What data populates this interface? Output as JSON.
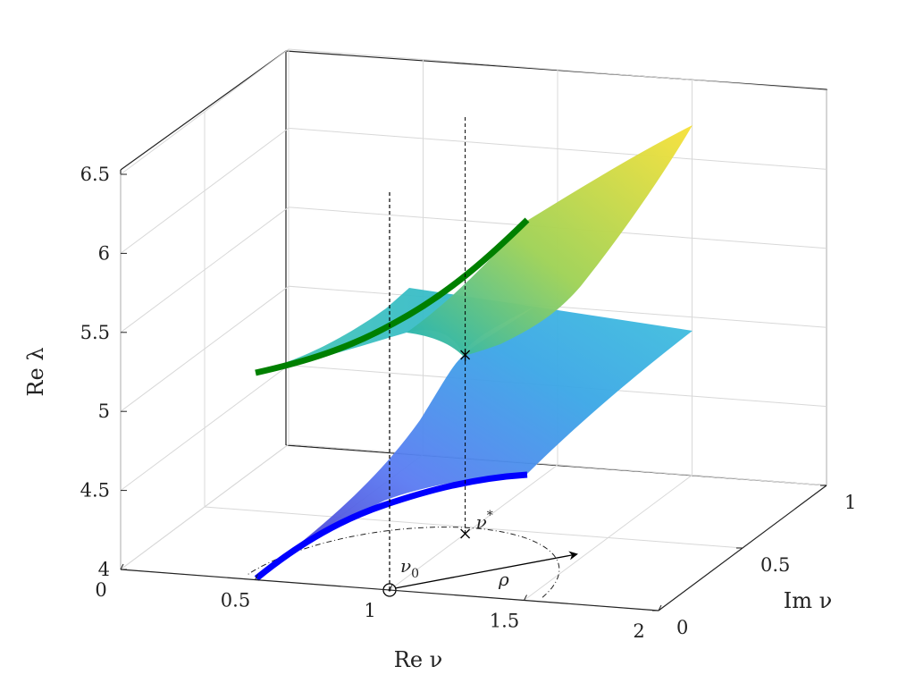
{
  "chart_data": {
    "type": "surface3d",
    "xlabel": "Re ν",
    "ylabel": "Im ν",
    "zlabel": "Re λ",
    "xlim": [
      0,
      2
    ],
    "ylim": [
      0,
      1
    ],
    "zlim": [
      4,
      6.5
    ],
    "x_ticks": [
      "0",
      "0.5",
      "1",
      "1.5",
      "2"
    ],
    "y_ticks": [
      "0",
      "0.5",
      "1"
    ],
    "z_ticks": [
      "4",
      "4.5",
      "5",
      "5.5",
      "6",
      "6.5"
    ],
    "grid": true,
    "colormap": [
      "#3d26a8",
      "#4a6ff0",
      "#29a9dc",
      "#35c0b0",
      "#9ccf5c",
      "#f5e12a"
    ],
    "curves": [
      {
        "color": "#008000",
        "x": [
          0.5,
          0.75,
          1.0,
          1.25,
          1.5
        ],
        "y": [
          0.55,
          0.55,
          0.55,
          0.55,
          0.55
        ],
        "z": [
          5.5,
          5.58,
          5.75,
          5.95,
          6.2
        ]
      },
      {
        "color": "#0000ff",
        "x": [
          0.5,
          0.75,
          1.0,
          1.25,
          1.5
        ],
        "y": [
          0.0,
          0.1,
          0.25,
          0.45,
          0.62
        ],
        "z": [
          4.0,
          4.1,
          4.2,
          4.3,
          4.35
        ]
      }
    ],
    "annotations": {
      "nu0": {
        "label": "ν",
        "sub": "0",
        "x": 1.0,
        "y": 0.0
      },
      "nustar": {
        "label": "ν",
        "sup": "*",
        "x": 1.0,
        "y": 0.45
      },
      "rho": {
        "label": "ρ"
      }
    },
    "circle_center": [
      1.0,
      0.0
    ],
    "circle_radius": 0.55
  }
}
